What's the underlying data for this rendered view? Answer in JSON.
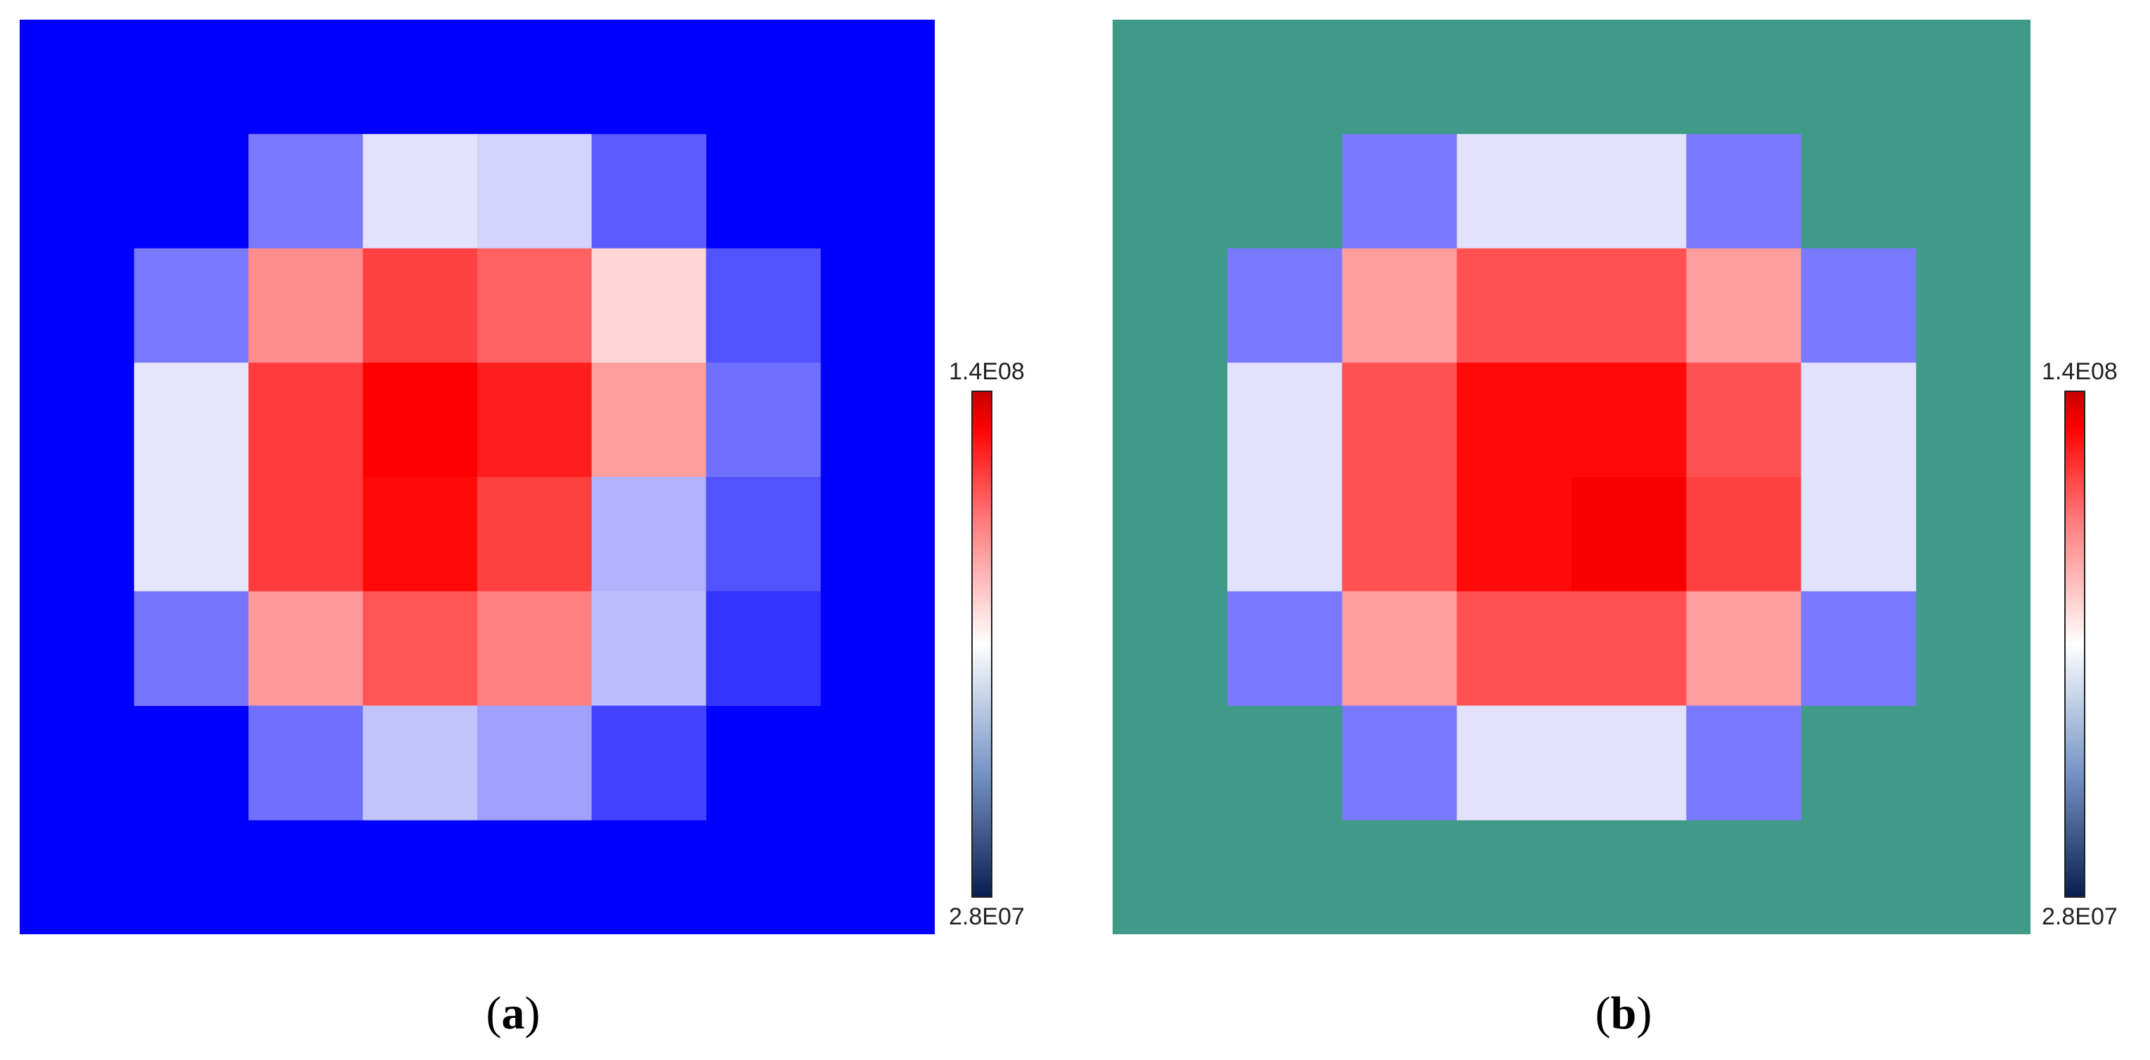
{
  "chart_data": [
    {
      "type": "heatmap",
      "panel_label": "a",
      "background_color": "#0000ff",
      "colorbar": {
        "min_label": "2.8E07",
        "max_label": "1.4E08",
        "min": 28000000,
        "max": 140000000
      },
      "grid": [
        [
          null,
          null,
          null,
          null,
          null,
          null,
          null,
          null
        ],
        [
          null,
          null,
          45000000,
          80000000,
          75000000,
          35000000,
          null,
          null
        ],
        [
          null,
          45000000,
          107000000,
          125000000,
          117000000,
          90000000,
          32000000,
          null
        ],
        [
          null,
          81000000,
          126000000,
          140000000,
          133000000,
          103000000,
          42000000,
          null
        ],
        [
          null,
          81000000,
          126000000,
          138000000,
          125000000,
          64000000,
          32000000,
          null
        ],
        [
          null,
          44000000,
          104000000,
          120000000,
          110000000,
          68000000,
          22000000,
          null
        ],
        [
          null,
          null,
          42000000,
          70000000,
          58000000,
          27000000,
          null,
          null
        ],
        [
          null,
          null,
          null,
          null,
          null,
          null,
          null,
          null
        ]
      ]
    },
    {
      "type": "heatmap",
      "panel_label": "b",
      "background_color": "#409a88",
      "colorbar": {
        "min_label": "2.8E07",
        "max_label": "1.4E08",
        "min": 28000000,
        "max": 140000000
      },
      "grid": [
        [
          null,
          null,
          null,
          null,
          null,
          null,
          null,
          null
        ],
        [
          null,
          null,
          45000000,
          80000000,
          80000000,
          45000000,
          null,
          null
        ],
        [
          null,
          45000000,
          103000000,
          121000000,
          121000000,
          103000000,
          45000000,
          null
        ],
        [
          null,
          80000000,
          121000000,
          138000000,
          138000000,
          121000000,
          80000000,
          null
        ],
        [
          null,
          80000000,
          121000000,
          138000000,
          150000000,
          125000000,
          80000000,
          null
        ],
        [
          null,
          45000000,
          103000000,
          121000000,
          121000000,
          103000000,
          45000000,
          null
        ],
        [
          null,
          null,
          45000000,
          80000000,
          80000000,
          45000000,
          null,
          null
        ],
        [
          null,
          null,
          null,
          null,
          null,
          null,
          null,
          null
        ]
      ]
    }
  ]
}
